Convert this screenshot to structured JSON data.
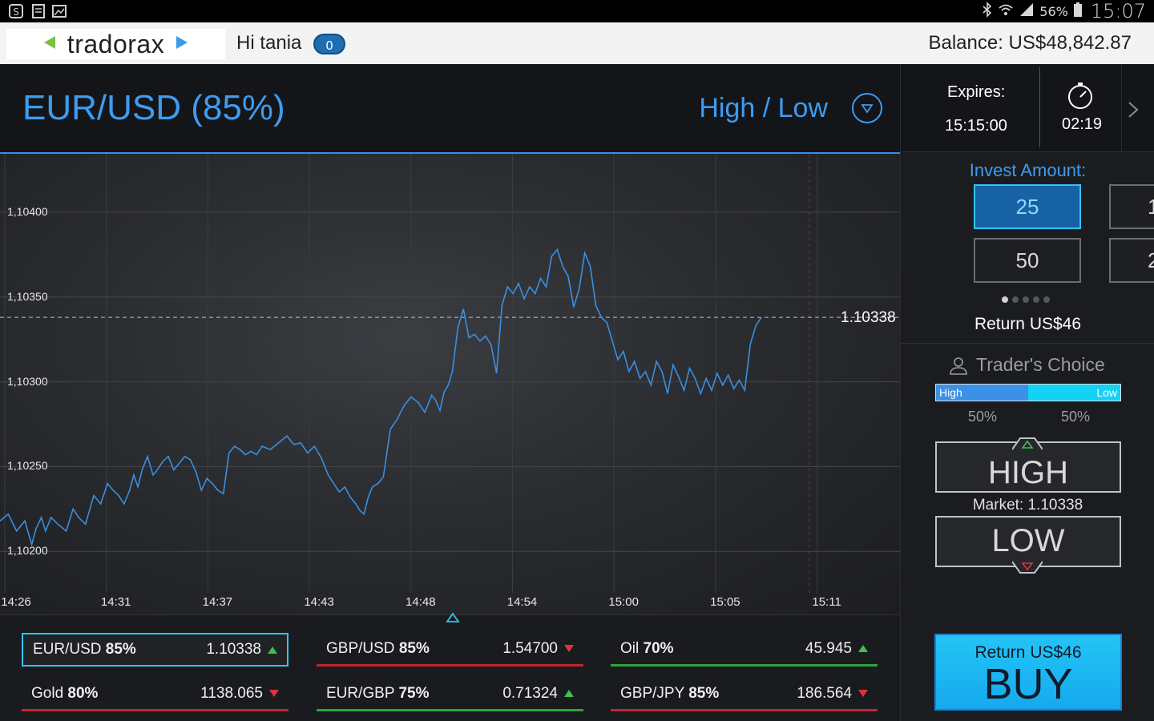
{
  "status_bar": {
    "battery": "56%",
    "time": "15:07"
  },
  "app_bar": {
    "logo": "tradorax",
    "greeting": "Hi tania",
    "notifications": "0",
    "balance": "Balance: US$48,842.87"
  },
  "asset_header": {
    "title": "EUR/USD (85%)",
    "option_type": "High / Low"
  },
  "chart_data": {
    "type": "line",
    "title": "",
    "xlabel": "",
    "ylabel": "",
    "yticks": [
      "1,10400",
      "1,10350",
      "1,10300",
      "1,10250",
      "1,10200"
    ],
    "ytick_values": [
      1.104,
      1.1035,
      1.103,
      1.1025,
      1.102
    ],
    "xticks": [
      "14:26",
      "14:31",
      "14:37",
      "14:43",
      "14:48",
      "14:54",
      "15:00",
      "15:05",
      "15:11"
    ],
    "ylim": [
      1.10185,
      1.10425
    ],
    "current_price": "1.10338",
    "current_value": 1.10338,
    "grid": true,
    "series": [
      {
        "color": "#3b8fe0",
        "x": [
          0,
          0.6,
          1.2,
          1.8,
          2.3,
          2.6,
          3.0,
          3.3,
          3.7,
          4.2,
          4.8,
          5.3,
          5.7,
          6.2,
          6.8,
          7.3,
          7.8,
          8.2,
          8.6,
          9.0,
          9.4,
          9.7,
          10.0,
          10.3,
          10.7,
          11.1,
          11.4,
          11.8,
          12.2,
          12.6,
          13.0,
          13.4,
          13.8,
          14.2,
          14.6,
          15.0,
          15.4,
          15.8,
          16.2,
          16.6,
          17.0,
          17.4,
          17.8,
          18.2,
          18.6,
          19.0,
          19.6,
          20.2,
          20.8,
          21.3,
          21.8,
          22.3,
          22.8,
          23.3,
          23.8,
          24.2,
          24.6,
          25.0,
          25.4,
          25.8,
          26.1,
          26.4,
          26.7,
          27.0,
          27.4,
          27.8,
          28.3,
          28.8,
          29.3,
          29.8,
          30.3,
          30.8,
          31.3,
          31.6,
          31.9,
          32.2,
          32.5,
          32.8,
          33.2,
          33.6,
          34.0,
          34.4,
          34.8,
          35.2,
          35.6,
          36.0,
          36.4,
          36.8,
          37.2,
          37.6,
          38.0,
          38.4,
          38.8,
          39.2,
          39.6,
          40.0,
          40.4,
          40.8,
          41.2,
          41.6,
          42.0,
          42.4,
          42.8,
          43.2,
          43.6,
          44.0,
          44.4,
          44.8,
          45.2,
          45.6,
          46.0,
          46.4,
          46.8,
          47.2,
          47.6,
          48.0,
          48.4,
          48.8,
          49.2,
          49.6,
          50.0,
          50.4,
          50.8,
          51.2,
          51.6,
          52.0,
          52.4,
          52.8,
          53.2,
          53.6,
          54.0,
          54.4,
          54.8,
          55.2
        ],
        "y": [
          1.10218,
          1.10222,
          1.10212,
          1.10218,
          1.10204,
          1.10213,
          1.1022,
          1.10212,
          1.1022,
          1.10216,
          1.10212,
          1.10225,
          1.1022,
          1.10216,
          1.10233,
          1.10228,
          1.1024,
          1.10236,
          1.10233,
          1.10228,
          1.10236,
          1.10245,
          1.10238,
          1.10248,
          1.10256,
          1.10245,
          1.10248,
          1.10253,
          1.10256,
          1.10248,
          1.10252,
          1.10256,
          1.10254,
          1.10247,
          1.10236,
          1.10243,
          1.1024,
          1.10236,
          1.10234,
          1.10258,
          1.10262,
          1.1026,
          1.10257,
          1.10259,
          1.10257,
          1.10262,
          1.1026,
          1.10264,
          1.10268,
          1.10263,
          1.10264,
          1.10258,
          1.10262,
          1.10255,
          1.10245,
          1.1024,
          1.10235,
          1.10238,
          1.10232,
          1.10228,
          1.10224,
          1.10222,
          1.10232,
          1.10238,
          1.1024,
          1.10244,
          1.10272,
          1.10278,
          1.10286,
          1.10291,
          1.10288,
          1.10282,
          1.10292,
          1.10289,
          1.10283,
          1.10294,
          1.10298,
          1.10306,
          1.10332,
          1.10343,
          1.10326,
          1.10328,
          1.10324,
          1.10327,
          1.10322,
          1.10305,
          1.10345,
          1.10356,
          1.10352,
          1.10358,
          1.10349,
          1.10356,
          1.10352,
          1.10361,
          1.10356,
          1.10374,
          1.10378,
          1.10368,
          1.10362,
          1.10344,
          1.10355,
          1.10376,
          1.10368,
          1.10345,
          1.10338,
          1.10335,
          1.10324,
          1.10313,
          1.10318,
          1.10306,
          1.10312,
          1.10302,
          1.10306,
          1.10298,
          1.10312,
          1.10306,
          1.10293,
          1.1031,
          1.10303,
          1.10295,
          1.10308,
          1.10302,
          1.10293,
          1.10302,
          1.10295,
          1.10305,
          1.10298,
          1.10304,
          1.10296,
          1.10301,
          1.10295,
          1.10322,
          1.10333,
          1.10338
        ]
      }
    ]
  },
  "assets": [
    {
      "name": "EUR/USD",
      "pct": "85%",
      "price": "1.10338",
      "dir": "up",
      "selected": true
    },
    {
      "name": "GBP/USD",
      "pct": "85%",
      "price": "1.54700",
      "dir": "down",
      "selected": false
    },
    {
      "name": "Oil",
      "pct": "70%",
      "price": "45.945",
      "dir": "up",
      "selected": false
    },
    {
      "name": "Gold",
      "pct": "80%",
      "price": "1138.065",
      "dir": "down",
      "selected": false
    },
    {
      "name": "EUR/GBP",
      "pct": "75%",
      "price": "0.71324",
      "dir": "up",
      "selected": false
    },
    {
      "name": "GBP/JPY",
      "pct": "85%",
      "price": "186.564",
      "dir": "down",
      "selected": false
    }
  ],
  "expiry": {
    "label": "Expires:",
    "time": "15:15:00",
    "countdown": "02:19"
  },
  "invest": {
    "label": "Invest Amount:",
    "amounts": [
      "25",
      "50"
    ],
    "partial_amounts": [
      "1",
      "2"
    ],
    "return_label": "Return US$46"
  },
  "traders_choice": {
    "label": "Trader's Choice",
    "high_label": "High",
    "low_label": "Low",
    "high_pct": "50%",
    "low_pct": "50%",
    "high_fraction": 0.5
  },
  "trade": {
    "high": "HIGH",
    "low": "LOW",
    "market": "Market: 1.10338",
    "buy_return": "Return US$46",
    "buy": "BUY"
  },
  "colors": {
    "accent": "#3d9cf0",
    "line": "#3b8fe0",
    "up": "#3ec14a",
    "down": "#e0333a",
    "buy": "#1fbdf4"
  }
}
